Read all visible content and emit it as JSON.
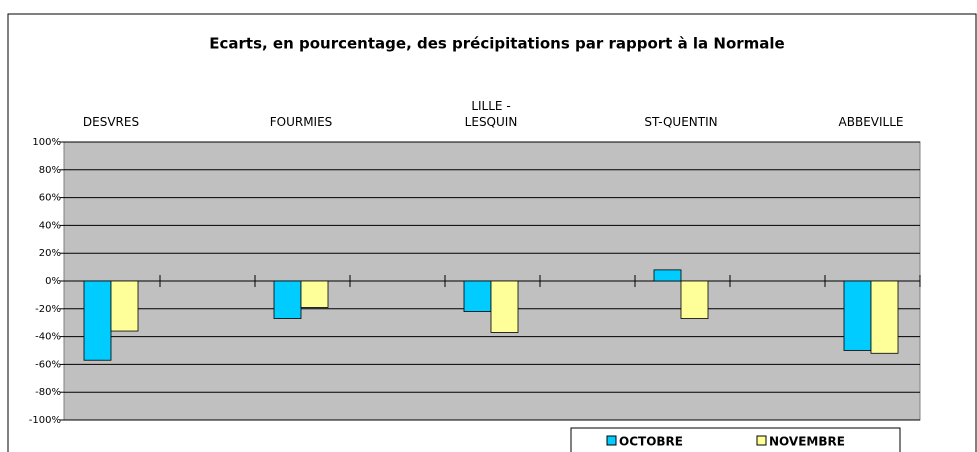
{
  "chart_data": {
    "type": "bar",
    "title": "Ecarts, en pourcentage, des précipitations par rapport à la Normale",
    "categories": [
      "DESVRES",
      "FOURMIES",
      "LILLE -\nLESQUIN",
      "ST-QUENTIN",
      "ABBEVILLE"
    ],
    "series": [
      {
        "name": "OCTOBRE",
        "color": "#00ccff",
        "values": [
          -57,
          -27,
          -22,
          8,
          -50
        ]
      },
      {
        "name": "NOVEMBRE",
        "color": "#ffff99",
        "values": [
          -36,
          -19,
          -37,
          -27,
          -52
        ]
      }
    ],
    "ylim": [
      -100,
      100
    ],
    "yticks": [
      {
        "value": -100,
        "label": "-100%"
      },
      {
        "value": -80,
        "label": "-80%"
      },
      {
        "value": -60,
        "label": "-60%"
      },
      {
        "value": -40,
        "label": "-40%"
      },
      {
        "value": -20,
        "label": "-20%"
      },
      {
        "value": 0,
        "label": "0%"
      },
      {
        "value": 20,
        "label": "20%"
      },
      {
        "value": 40,
        "label": "40%"
      },
      {
        "value": 60,
        "label": "60%"
      },
      {
        "value": 80,
        "label": "80%"
      },
      {
        "value": 100,
        "label": "100%"
      }
    ],
    "grid": true
  }
}
